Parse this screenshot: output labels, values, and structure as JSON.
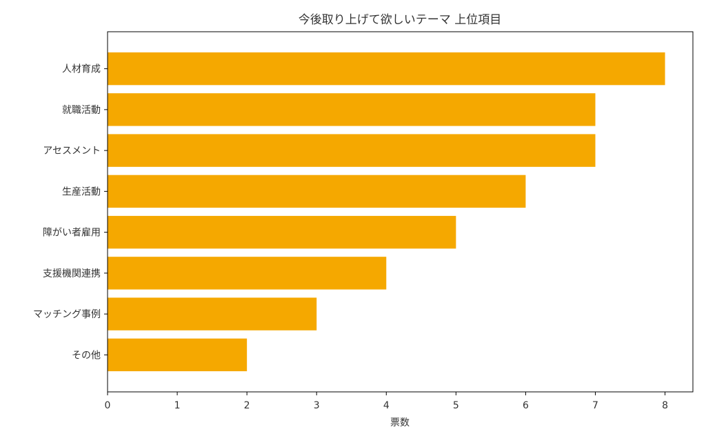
{
  "chart_data": {
    "type": "bar",
    "orientation": "horizontal",
    "title": "今後取り上げて欲しいテーマ 上位項目",
    "xlabel": "票数",
    "ylabel": "",
    "categories": [
      "人材育成",
      "就職活動",
      "アセスメント",
      "生産活動",
      "障がい者雇用",
      "支援機関連携",
      "マッチング事例",
      "その他"
    ],
    "values": [
      8,
      7,
      7,
      6,
      5,
      4,
      3,
      2
    ],
    "xlim": [
      0,
      8.4
    ],
    "xticks": [
      "0",
      "1",
      "2",
      "3",
      "4",
      "5",
      "6",
      "7",
      "8"
    ],
    "grid": false,
    "bar_color": "#F5A800",
    "axis_color": "#000000"
  }
}
